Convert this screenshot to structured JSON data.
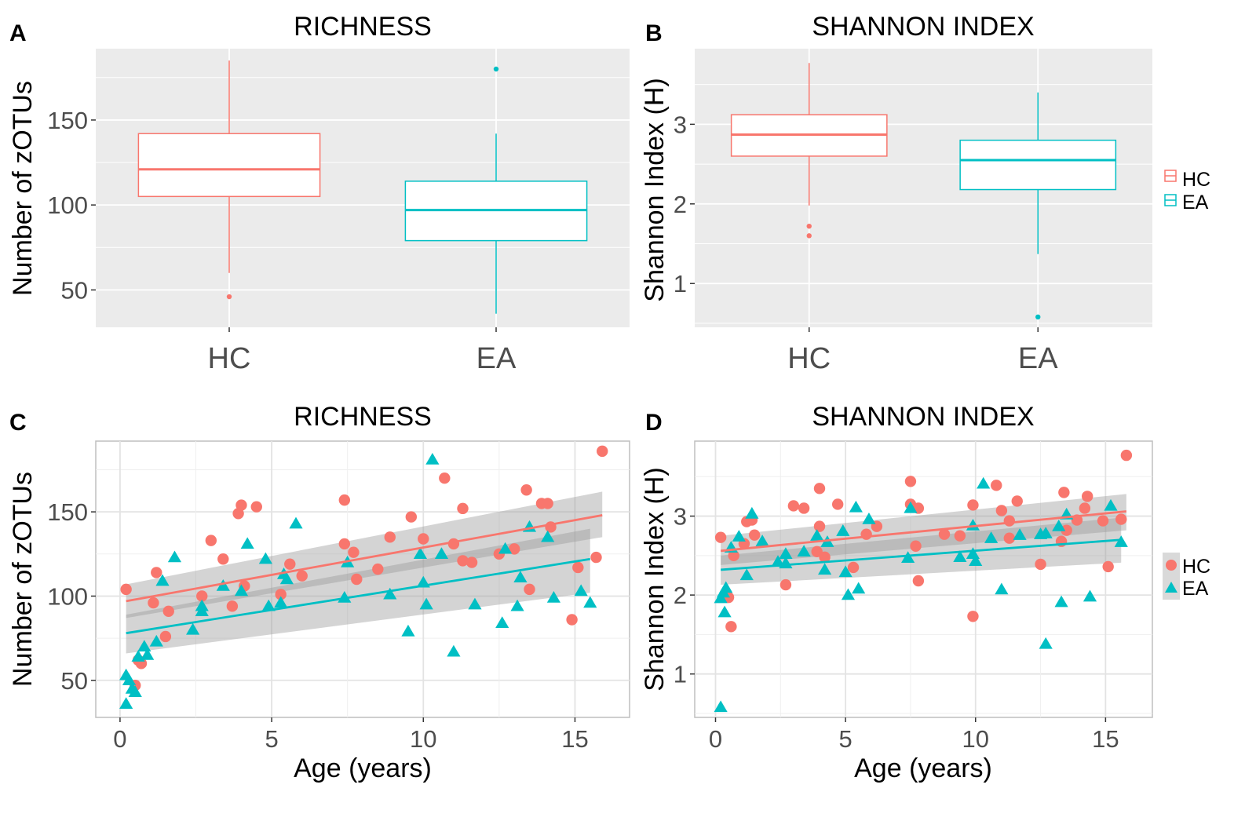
{
  "colors": {
    "hc": "#F8766D",
    "ea": "#00BFC4",
    "panel": "#EBEBEB",
    "grid": "#FFFFFF",
    "ci": "#999999",
    "text": "#222222",
    "tick": "#4D4D4D"
  },
  "legend": {
    "items": [
      "HC",
      "EA"
    ]
  },
  "chart_data": [
    {
      "panel": "A",
      "type": "box",
      "title": "RICHNESS",
      "xlabel": "",
      "ylabel": "Number of zOTUs",
      "ylim": [
        28,
        192
      ],
      "yticks": [
        50,
        100,
        150
      ],
      "categories": [
        "HC",
        "EA"
      ],
      "boxes": [
        {
          "group": "HC",
          "min": 60,
          "q1": 105,
          "median": 121,
          "q3": 142,
          "max": 185,
          "outliers": [
            46
          ]
        },
        {
          "group": "EA",
          "min": 36,
          "q1": 79,
          "median": 97,
          "q3": 114,
          "max": 142,
          "outliers": [
            180
          ]
        }
      ]
    },
    {
      "panel": "B",
      "type": "box",
      "title": "SHANNON INDEX",
      "xlabel": "",
      "ylabel": "Shannon Index (H)",
      "ylim": [
        0.45,
        3.95
      ],
      "yticks": [
        1,
        2,
        3
      ],
      "categories": [
        "HC",
        "EA"
      ],
      "legend": [
        "HC",
        "EA"
      ],
      "boxes": [
        {
          "group": "HC",
          "min": 1.98,
          "q1": 2.6,
          "median": 2.87,
          "q3": 3.12,
          "max": 3.77,
          "outliers": [
            1.72,
            1.6
          ]
        },
        {
          "group": "EA",
          "min": 1.37,
          "q1": 2.18,
          "median": 2.55,
          "q3": 2.8,
          "max": 3.4,
          "outliers": [
            0.58
          ]
        }
      ]
    },
    {
      "panel": "C",
      "type": "scatter",
      "title": "RICHNESS",
      "xlabel": "Age (years)",
      "ylabel": "Number of zOTUs",
      "xlim": [
        -0.8,
        16.8
      ],
      "ylim": [
        28,
        192
      ],
      "xticks": [
        0,
        5,
        10,
        15
      ],
      "yticks": [
        50,
        100,
        150
      ],
      "series": [
        {
          "name": "HC",
          "shape": "circle",
          "points": [
            [
              0.2,
              104
            ],
            [
              0.5,
              47
            ],
            [
              0.6,
              62
            ],
            [
              0.7,
              60
            ],
            [
              1.1,
              96
            ],
            [
              1.2,
              114
            ],
            [
              1.5,
              76
            ],
            [
              1.6,
              91
            ],
            [
              2.7,
              100
            ],
            [
              3.0,
              133
            ],
            [
              3.4,
              122
            ],
            [
              3.7,
              94
            ],
            [
              3.9,
              149
            ],
            [
              4.0,
              154
            ],
            [
              4.1,
              106
            ],
            [
              4.5,
              153
            ],
            [
              5.3,
              101
            ],
            [
              5.6,
              119
            ],
            [
              6.0,
              112
            ],
            [
              7.4,
              131
            ],
            [
              7.4,
              157
            ],
            [
              7.7,
              126
            ],
            [
              7.8,
              110
            ],
            [
              8.5,
              116
            ],
            [
              8.9,
              135
            ],
            [
              9.6,
              147
            ],
            [
              10.0,
              134
            ],
            [
              10.7,
              170
            ],
            [
              11.0,
              131
            ],
            [
              11.3,
              152
            ],
            [
              11.3,
              121
            ],
            [
              11.6,
              120
            ],
            [
              12.5,
              125
            ],
            [
              13.0,
              128
            ],
            [
              13.4,
              163
            ],
            [
              13.5,
              104
            ],
            [
              13.9,
              155
            ],
            [
              14.1,
              155
            ],
            [
              14.2,
              141
            ],
            [
              14.9,
              86
            ],
            [
              15.1,
              117
            ],
            [
              15.7,
              123
            ],
            [
              15.9,
              186
            ]
          ],
          "fit": {
            "x": [
              0.2,
              15.9
            ],
            "y": [
              97,
              148
            ],
            "ci_low": [
              87,
              135
            ],
            "ci_high": [
              107,
              162
            ]
          }
        },
        {
          "name": "EA",
          "shape": "triangle",
          "points": [
            [
              0.2,
              36
            ],
            [
              0.2,
              53
            ],
            [
              0.3,
              50
            ],
            [
              0.4,
              45
            ],
            [
              0.5,
              43
            ],
            [
              0.6,
              64
            ],
            [
              0.8,
              70
            ],
            [
              0.9,
              65
            ],
            [
              1.2,
              73
            ],
            [
              1.4,
              109
            ],
            [
              1.8,
              123
            ],
            [
              2.4,
              80
            ],
            [
              2.7,
              91
            ],
            [
              2.7,
              94
            ],
            [
              3.4,
              106
            ],
            [
              4.0,
              103
            ],
            [
              4.2,
              131
            ],
            [
              4.8,
              122
            ],
            [
              4.9,
              94
            ],
            [
              5.3,
              96
            ],
            [
              5.4,
              113
            ],
            [
              5.5,
              110
            ],
            [
              5.8,
              143
            ],
            [
              7.4,
              99
            ],
            [
              7.5,
              120
            ],
            [
              8.9,
              101
            ],
            [
              9.5,
              79
            ],
            [
              9.9,
              125
            ],
            [
              10.0,
              108
            ],
            [
              10.1,
              95
            ],
            [
              10.3,
              181
            ],
            [
              10.6,
              125
            ],
            [
              11.0,
              67
            ],
            [
              11.7,
              95
            ],
            [
              12.6,
              84
            ],
            [
              12.7,
              128
            ],
            [
              13.1,
              94
            ],
            [
              13.2,
              111
            ],
            [
              13.5,
              141
            ],
            [
              14.1,
              135
            ],
            [
              14.3,
              99
            ],
            [
              15.2,
              103
            ],
            [
              15.5,
              96
            ]
          ],
          "fit": {
            "x": [
              0.2,
              15.5
            ],
            "y": [
              78,
              122
            ],
            "ci_low": [
              66,
              102
            ],
            "ci_high": [
              89,
              140
            ]
          }
        }
      ]
    },
    {
      "panel": "D",
      "type": "scatter",
      "title": "SHANNON INDEX",
      "xlabel": "Age (years)",
      "ylabel": "Shannon Index (H)",
      "xlim": [
        -0.8,
        16.8
      ],
      "ylim": [
        0.45,
        3.95
      ],
      "xticks": [
        0,
        5,
        10,
        15
      ],
      "yticks": [
        1,
        2,
        3
      ],
      "legend": [
        "HC",
        "EA"
      ],
      "series": [
        {
          "name": "HC",
          "shape": "circle",
          "points": [
            [
              0.2,
              2.73
            ],
            [
              0.5,
              1.97
            ],
            [
              0.6,
              1.6
            ],
            [
              0.7,
              2.5
            ],
            [
              1.1,
              2.65
            ],
            [
              1.2,
              2.93
            ],
            [
              1.4,
              2.95
            ],
            [
              1.5,
              2.76
            ],
            [
              2.7,
              2.13
            ],
            [
              3.0,
              3.13
            ],
            [
              3.4,
              3.1
            ],
            [
              3.9,
              2.55
            ],
            [
              4.0,
              3.35
            ],
            [
              4.0,
              2.87
            ],
            [
              4.2,
              2.48
            ],
            [
              4.7,
              3.15
            ],
            [
              5.3,
              2.35
            ],
            [
              5.8,
              2.77
            ],
            [
              6.2,
              2.87
            ],
            [
              7.5,
              3.44
            ],
            [
              7.5,
              3.15
            ],
            [
              7.7,
              2.62
            ],
            [
              7.8,
              2.18
            ],
            [
              7.8,
              3.1
            ],
            [
              8.8,
              2.77
            ],
            [
              9.4,
              2.75
            ],
            [
              9.9,
              3.14
            ],
            [
              9.9,
              1.73
            ],
            [
              10.8,
              3.39
            ],
            [
              11.0,
              3.07
            ],
            [
              11.3,
              2.94
            ],
            [
              11.3,
              2.72
            ],
            [
              11.6,
              3.19
            ],
            [
              12.5,
              2.39
            ],
            [
              13.3,
              2.68
            ],
            [
              13.4,
              3.3
            ],
            [
              13.5,
              2.82
            ],
            [
              13.9,
              2.95
            ],
            [
              14.2,
              3.1
            ],
            [
              14.3,
              3.25
            ],
            [
              14.9,
              2.94
            ],
            [
              15.1,
              2.36
            ],
            [
              15.6,
              2.96
            ],
            [
              15.8,
              3.77
            ]
          ],
          "fit": {
            "x": [
              0.2,
              15.8
            ],
            "y": [
              2.56,
              3.06
            ],
            "ci_low": [
              2.38,
              2.82
            ],
            "ci_high": [
              2.75,
              3.28
            ]
          }
        },
        {
          "name": "EA",
          "shape": "triangle",
          "points": [
            [
              0.2,
              0.58
            ],
            [
              0.2,
              1.96
            ],
            [
              0.3,
              2.03
            ],
            [
              0.35,
              1.78
            ],
            [
              0.4,
              2.09
            ],
            [
              0.6,
              2.6
            ],
            [
              0.9,
              2.74
            ],
            [
              1.2,
              2.25
            ],
            [
              1.4,
              3.03
            ],
            [
              1.8,
              2.68
            ],
            [
              2.4,
              2.42
            ],
            [
              2.7,
              2.4
            ],
            [
              2.7,
              2.52
            ],
            [
              3.4,
              2.55
            ],
            [
              3.9,
              2.75
            ],
            [
              4.2,
              2.32
            ],
            [
              4.3,
              2.67
            ],
            [
              4.9,
              2.81
            ],
            [
              5.0,
              2.29
            ],
            [
              5.1,
              2.0
            ],
            [
              5.4,
              3.11
            ],
            [
              5.5,
              2.08
            ],
            [
              5.9,
              2.96
            ],
            [
              7.4,
              2.47
            ],
            [
              7.5,
              3.1
            ],
            [
              9.4,
              2.48
            ],
            [
              9.9,
              2.88
            ],
            [
              9.9,
              2.52
            ],
            [
              10.0,
              2.43
            ],
            [
              10.3,
              3.41
            ],
            [
              10.6,
              2.72
            ],
            [
              11.0,
              2.07
            ],
            [
              11.7,
              2.76
            ],
            [
              12.5,
              2.77
            ],
            [
              12.7,
              1.38
            ],
            [
              12.7,
              2.78
            ],
            [
              13.2,
              2.87
            ],
            [
              13.3,
              1.91
            ],
            [
              13.5,
              3.02
            ],
            [
              14.4,
              1.98
            ],
            [
              15.2,
              3.13
            ],
            [
              15.6,
              2.67
            ]
          ],
          "fit": {
            "x": [
              0.2,
              15.6
            ],
            "y": [
              2.32,
              2.7
            ],
            "ci_low": [
              2.13,
              2.41
            ],
            "ci_high": [
              2.5,
              2.98
            ]
          }
        }
      ]
    }
  ]
}
